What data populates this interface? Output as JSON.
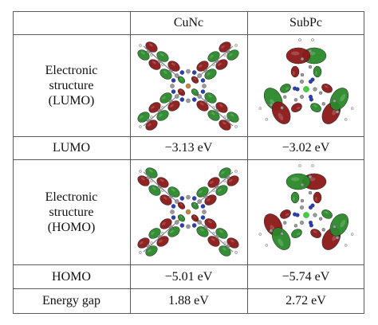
{
  "table": {
    "headers": [
      "",
      "CuNc",
      "SubPc"
    ],
    "rows": [
      {
        "label_lines": [
          "Electronic",
          "structure",
          "(LUMO)"
        ],
        "cunc": "",
        "subpc": ""
      },
      {
        "label": "LUMO",
        "cunc": "−3.13 eV",
        "subpc": "−3.02 eV"
      },
      {
        "label_lines": [
          "Electronic",
          "structure",
          "(HOMO)"
        ],
        "cunc": "",
        "subpc": ""
      },
      {
        "label": "HOMO",
        "cunc": "−5.01 eV",
        "subpc": "−5.74 eV"
      },
      {
        "label": "Energy gap",
        "cunc": "1.88 eV",
        "subpc": "2.72 eV"
      }
    ]
  },
  "colors": {
    "orbital_red": "#8c1818",
    "orbital_green": "#2a8a2a",
    "atom_blue": "#2b3fb5",
    "atom_gray": "#9a9a9a",
    "center_green": "#3cd43c",
    "border": "#5a5a5a"
  }
}
